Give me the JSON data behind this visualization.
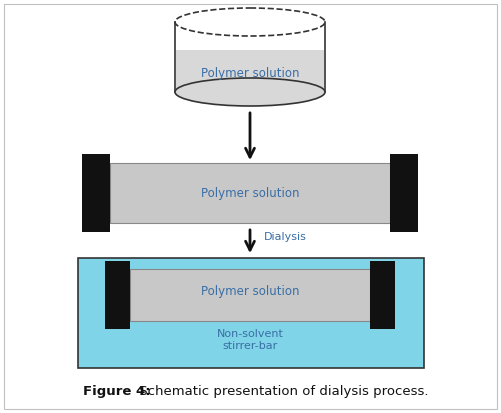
{
  "bg_color": "#ffffff",
  "border_color": "#c0c0c0",
  "figure_title_bold": "Figure 4:",
  "figure_title_rest": " Schematic presentation of dialysis process.",
  "title_fontsize": 9.5,
  "polymer_solution_label": "Polymer solution",
  "dialysis_label": "Dialysis",
  "non_solvent_label": "Non-solvent\nstirrer-bar",
  "label_color": "#3a6ea5",
  "label_fontsize": 8.5,
  "cylinder_color": "#d8d8d8",
  "cylinder_edge_color": "#333333",
  "membrane_gray": "#c8c8c8",
  "membrane_edge": "#888888",
  "clamp_black": "#111111",
  "bath_color": "#7fd4e8",
  "bath_edge_color": "#333333",
  "arrow_color": "#111111",
  "caption_color": "#111111"
}
